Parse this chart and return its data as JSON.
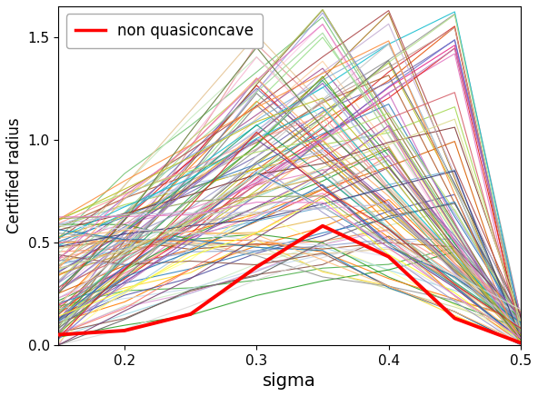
{
  "title": "",
  "xlabel": "sigma",
  "ylabel": "Certified radius",
  "xlim": [
    0.15,
    0.5
  ],
  "ylim": [
    0.0,
    1.65
  ],
  "sigma_values": [
    0.15,
    0.2,
    0.25,
    0.3,
    0.35,
    0.4,
    0.45,
    0.5
  ],
  "red_line": [
    0.05,
    0.07,
    0.15,
    0.38,
    0.58,
    0.43,
    0.13,
    0.01
  ],
  "legend_label": "non quasiconcave",
  "legend_color": "red",
  "background_color": "#ffffff",
  "random_seed": 42,
  "n_lines": 120
}
